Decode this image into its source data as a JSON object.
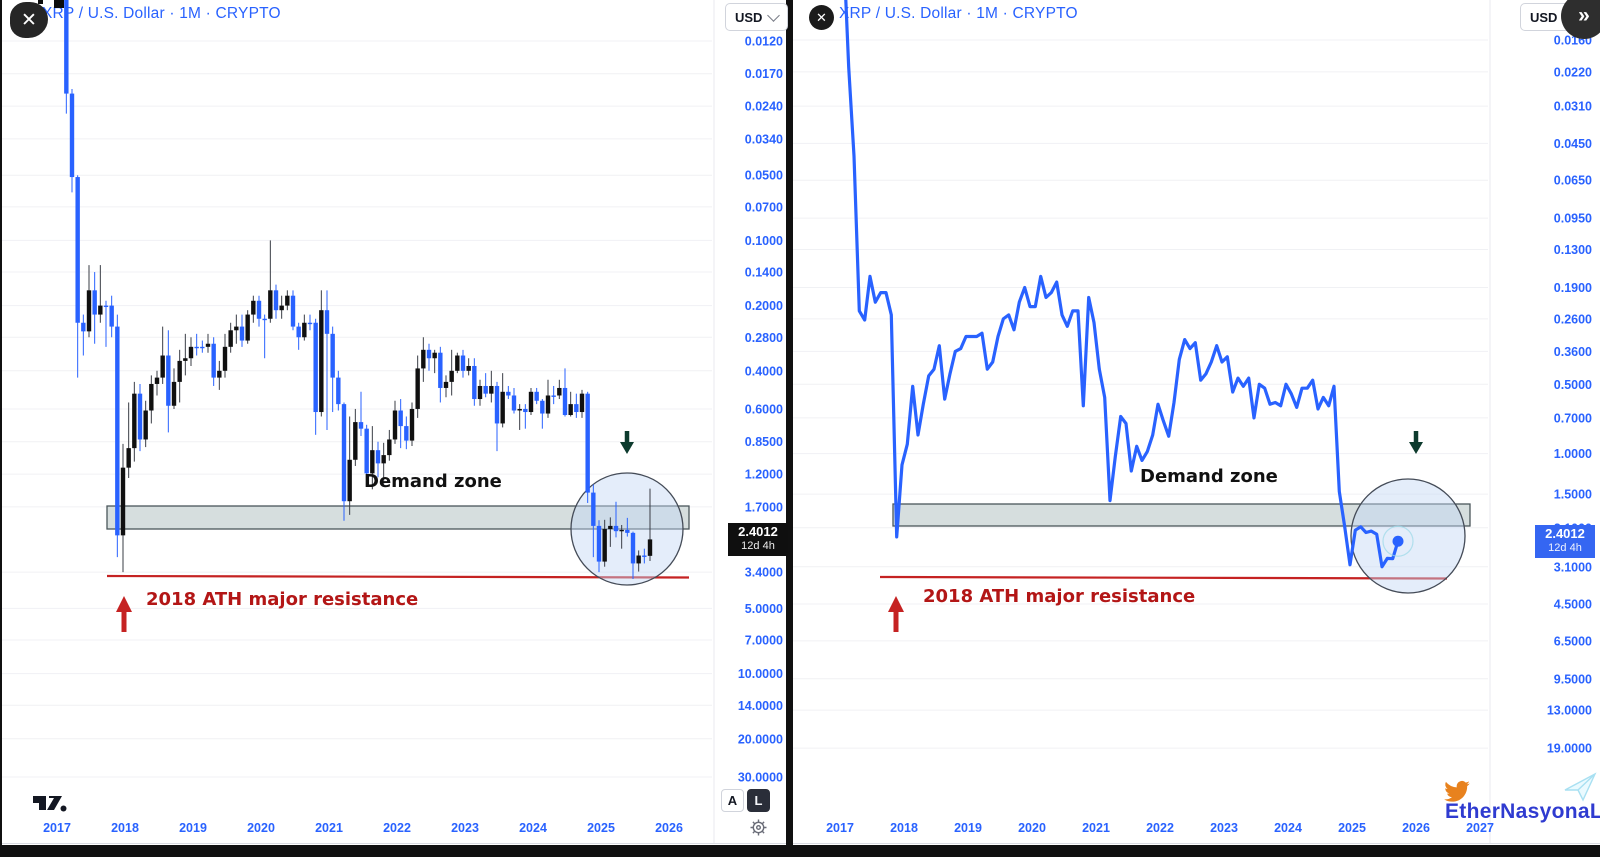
{
  "colors": {
    "accent_blue": "#2962FF",
    "bear_black": "#101010",
    "red_line": "#c52222",
    "red_text": "#b31616",
    "green_arrow": "#0d3b2e",
    "band_fill": "#cfd8d8",
    "band_border": "#4a565a",
    "circle_fill": "rgba(196,214,243,0.45)",
    "circle_border": "#444b57",
    "price_label_left_bg": "#0f0f0f",
    "price_label_right_bg": "#3566f2",
    "watermark_blue": "#2f3bd0",
    "bird_orange": "#e8821e"
  },
  "left_chart": {
    "header": {
      "symbol": "XRP / U.S. Dollar · 1M · CRYPTO",
      "currency_button": "USD"
    },
    "close_button": "✕",
    "price_label": {
      "price": "2.4012",
      "countdown": "12d 4h"
    },
    "y_axis": {
      "ticks": [
        "0.0120",
        "0.0170",
        "0.0240",
        "0.0340",
        "0.0500",
        "0.0700",
        "0.1000",
        "0.1400",
        "0.2000",
        "0.2800",
        "0.4000",
        "0.6000",
        "0.8500",
        "1.2000",
        "1.7000",
        "3.4000",
        "5.0000",
        "7.0000",
        "10.0000",
        "14.0000",
        "20.0000",
        "30.0000"
      ]
    },
    "x_axis": {
      "years": [
        "2017",
        "2018",
        "2019",
        "2020",
        "2021",
        "2022",
        "2023",
        "2024",
        "2025",
        "2026"
      ]
    },
    "annotations": {
      "demand_zone": "Demand zone",
      "ath": "2018 ATH major resistance"
    },
    "scale_toggles": {
      "auto": "A",
      "log": "L"
    }
  },
  "right_chart": {
    "header": {
      "symbol": "XRP / U.S. Dollar · 1M · CRYPTO",
      "currency_button": "USD",
      "collapse_button": "»"
    },
    "close_button": "✕",
    "price_label": {
      "price": "2.4012",
      "countdown": "12d 4h"
    },
    "y_axis": {
      "ticks": [
        "0.0160",
        "0.0220",
        "0.0310",
        "0.0450",
        "0.0650",
        "0.0950",
        "0.1300",
        "0.1900",
        "0.2600",
        "0.3600",
        "0.5000",
        "0.7000",
        "1.0000",
        "1.5000",
        "2.1000",
        "3.1000",
        "4.5000",
        "6.5000",
        "9.5000",
        "13.0000",
        "19.0000"
      ]
    },
    "x_axis": {
      "years": [
        "2017",
        "2018",
        "2019",
        "2020",
        "2021",
        "2022",
        "2023",
        "2024",
        "2025",
        "2026",
        "2027"
      ]
    },
    "annotations": {
      "demand_zone": "Demand zone",
      "ath": "2018 ATH major resistance"
    }
  },
  "watermark": {
    "handle": "EtherNasyonaL"
  },
  "chart_data": [
    {
      "type": "candlestick",
      "title": "XRP / U.S. Dollar · 1M · CRYPTO (left pane)",
      "scale": "log",
      "inverted_y_axis": true,
      "y_ticks": [
        0.012,
        0.017,
        0.024,
        0.034,
        0.05,
        0.07,
        0.1,
        0.14,
        0.2,
        0.28,
        0.4,
        0.6,
        0.85,
        1.2,
        1.7,
        3.4,
        5,
        7,
        10,
        14,
        20,
        30
      ],
      "x_years": [
        2017,
        2018,
        2019,
        2020,
        2021,
        2022,
        2023,
        2024,
        2025,
        2026
      ],
      "demand_zone_price_range": [
        1.72,
        2.18
      ],
      "ath_resistance_price": 3.4,
      "current_price": 2.4012,
      "columns": [
        "month",
        "open",
        "high",
        "low",
        "close"
      ],
      "candles": [
        [
          "2017-01",
          0.0065,
          0.0072,
          0.0058,
          0.0063
        ],
        [
          "2017-02",
          0.0063,
          0.007,
          0.0055,
          0.006
        ],
        [
          "2017-03",
          0.006,
          0.026,
          0.0058,
          0.021
        ],
        [
          "2017-04",
          0.021,
          0.06,
          0.02,
          0.051
        ],
        [
          "2017-05",
          0.051,
          0.43,
          0.05,
          0.24
        ],
        [
          "2017-06",
          0.24,
          0.34,
          0.22,
          0.263
        ],
        [
          "2017-07",
          0.263,
          0.28,
          0.13,
          0.17
        ],
        [
          "2017-08",
          0.17,
          0.3,
          0.14,
          0.22
        ],
        [
          "2017-09",
          0.22,
          0.24,
          0.13,
          0.2
        ],
        [
          "2017-10",
          0.2,
          0.31,
          0.19,
          0.2
        ],
        [
          "2017-11",
          0.2,
          0.28,
          0.18,
          0.25
        ],
        [
          "2017-12",
          0.25,
          2.9,
          0.22,
          2.3
        ],
        [
          "2018-01",
          2.3,
          3.4,
          0.87,
          1.12
        ],
        [
          "2018-02",
          1.12,
          1.25,
          0.56,
          0.91
        ],
        [
          "2018-03",
          0.91,
          1.05,
          0.45,
          0.51
        ],
        [
          "2018-04",
          0.51,
          0.94,
          0.46,
          0.83
        ],
        [
          "2018-05",
          0.83,
          0.9,
          0.55,
          0.61
        ],
        [
          "2018-06",
          0.61,
          0.7,
          0.42,
          0.46
        ],
        [
          "2018-07",
          0.46,
          0.52,
          0.4,
          0.43
        ],
        [
          "2018-08",
          0.43,
          0.46,
          0.25,
          0.34
        ],
        [
          "2018-09",
          0.34,
          0.77,
          0.26,
          0.58
        ],
        [
          "2018-10",
          0.58,
          0.6,
          0.39,
          0.45
        ],
        [
          "2018-11",
          0.45,
          0.56,
          0.32,
          0.36
        ],
        [
          "2018-12",
          0.36,
          0.42,
          0.27,
          0.35
        ],
        [
          "2019-01",
          0.35,
          0.38,
          0.28,
          0.31
        ],
        [
          "2019-02",
          0.31,
          0.34,
          0.27,
          0.31
        ],
        [
          "2019-03",
          0.31,
          0.33,
          0.29,
          0.31
        ],
        [
          "2019-04",
          0.31,
          0.33,
          0.27,
          0.3
        ],
        [
          "2019-05",
          0.3,
          0.47,
          0.28,
          0.43
        ],
        [
          "2019-06",
          0.43,
          0.49,
          0.36,
          0.4
        ],
        [
          "2019-07",
          0.4,
          0.43,
          0.27,
          0.31
        ],
        [
          "2019-08",
          0.31,
          0.33,
          0.24,
          0.26
        ],
        [
          "2019-09",
          0.26,
          0.3,
          0.22,
          0.25
        ],
        [
          "2019-10",
          0.25,
          0.31,
          0.22,
          0.29
        ],
        [
          "2019-11",
          0.29,
          0.3,
          0.21,
          0.22
        ],
        [
          "2019-12",
          0.22,
          0.24,
          0.18,
          0.19
        ],
        [
          "2020-01",
          0.19,
          0.25,
          0.18,
          0.23
        ],
        [
          "2020-02",
          0.23,
          0.35,
          0.22,
          0.23
        ],
        [
          "2020-03",
          0.23,
          0.24,
          0.1,
          0.17
        ],
        [
          "2020-04",
          0.17,
          0.23,
          0.16,
          0.21
        ],
        [
          "2020-05",
          0.21,
          0.23,
          0.18,
          0.2
        ],
        [
          "2020-06",
          0.2,
          0.21,
          0.17,
          0.18
        ],
        [
          "2020-07",
          0.18,
          0.26,
          0.17,
          0.25
        ],
        [
          "2020-08",
          0.25,
          0.32,
          0.24,
          0.28
        ],
        [
          "2020-09",
          0.28,
          0.29,
          0.22,
          0.24
        ],
        [
          "2020-10",
          0.24,
          0.26,
          0.22,
          0.24
        ],
        [
          "2020-11",
          0.24,
          0.79,
          0.23,
          0.62
        ],
        [
          "2020-12",
          0.62,
          0.65,
          0.17,
          0.21
        ],
        [
          "2021-01",
          0.21,
          0.75,
          0.17,
          0.27
        ],
        [
          "2021-02",
          0.27,
          0.62,
          0.25,
          0.43
        ],
        [
          "2021-03",
          0.43,
          0.61,
          0.4,
          0.57
        ],
        [
          "2021-04",
          0.57,
          1.97,
          0.56,
          1.6
        ],
        [
          "2021-05",
          1.6,
          1.85,
          0.65,
          1.03
        ],
        [
          "2021-06",
          1.03,
          1.1,
          0.6,
          0.69
        ],
        [
          "2021-07",
          0.69,
          0.8,
          0.5,
          0.74
        ],
        [
          "2021-08",
          0.74,
          1.34,
          0.71,
          1.19
        ],
        [
          "2021-09",
          1.19,
          1.41,
          0.72,
          0.93
        ],
        [
          "2021-10",
          0.93,
          1.24,
          0.85,
          1.07
        ],
        [
          "2021-11",
          1.07,
          1.36,
          0.86,
          0.98
        ],
        [
          "2021-12",
          0.98,
          1.04,
          0.75,
          0.83
        ],
        [
          "2022-01",
          0.83,
          0.87,
          0.55,
          0.61
        ],
        [
          "2022-02",
          0.61,
          0.91,
          0.54,
          0.72
        ],
        [
          "2022-03",
          0.72,
          0.92,
          0.65,
          0.84
        ],
        [
          "2022-04",
          0.84,
          0.89,
          0.56,
          0.6
        ],
        [
          "2022-05",
          0.6,
          0.66,
          0.34,
          0.39
        ],
        [
          "2022-06",
          0.39,
          0.45,
          0.28,
          0.32
        ],
        [
          "2022-07",
          0.32,
          0.4,
          0.3,
          0.35
        ],
        [
          "2022-08",
          0.35,
          0.41,
          0.32,
          0.33
        ],
        [
          "2022-09",
          0.33,
          0.56,
          0.31,
          0.48
        ],
        [
          "2022-10",
          0.48,
          0.53,
          0.42,
          0.45
        ],
        [
          "2022-11",
          0.45,
          0.52,
          0.32,
          0.4
        ],
        [
          "2022-12",
          0.4,
          0.41,
          0.33,
          0.34
        ],
        [
          "2023-01",
          0.34,
          0.43,
          0.32,
          0.4
        ],
        [
          "2023-02",
          0.4,
          0.42,
          0.35,
          0.38
        ],
        [
          "2023-03",
          0.38,
          0.58,
          0.35,
          0.54
        ],
        [
          "2023-04",
          0.54,
          0.58,
          0.44,
          0.47
        ],
        [
          "2023-05",
          0.47,
          0.53,
          0.41,
          0.51
        ],
        [
          "2023-06",
          0.51,
          0.56,
          0.4,
          0.47
        ],
        [
          "2023-07",
          0.47,
          0.94,
          0.45,
          0.7
        ],
        [
          "2023-08",
          0.7,
          0.73,
          0.41,
          0.5
        ],
        [
          "2023-09",
          0.5,
          0.54,
          0.47,
          0.52
        ],
        [
          "2023-10",
          0.52,
          0.63,
          0.48,
          0.61
        ],
        [
          "2023-11",
          0.61,
          0.75,
          0.57,
          0.6
        ],
        [
          "2023-12",
          0.6,
          0.74,
          0.57,
          0.62
        ],
        [
          "2024-01",
          0.62,
          0.64,
          0.48,
          0.5
        ],
        [
          "2024-02",
          0.5,
          0.57,
          0.48,
          0.55
        ],
        [
          "2024-03",
          0.55,
          0.74,
          0.54,
          0.63
        ],
        [
          "2024-04",
          0.63,
          0.66,
          0.44,
          0.52
        ],
        [
          "2024-05",
          0.52,
          0.57,
          0.47,
          0.52
        ],
        [
          "2024-06",
          0.52,
          0.54,
          0.44,
          0.48
        ],
        [
          "2024-07",
          0.48,
          0.65,
          0.39,
          0.64
        ],
        [
          "2024-08",
          0.64,
          0.65,
          0.5,
          0.57
        ],
        [
          "2024-09",
          0.57,
          0.66,
          0.51,
          0.62
        ],
        [
          "2024-10",
          0.62,
          0.66,
          0.49,
          0.51
        ],
        [
          "2024-11",
          0.51,
          1.63,
          0.5,
          1.46
        ],
        [
          "2024-12",
          1.46,
          2.9,
          1.34,
          2.08
        ],
        [
          "2025-01",
          2.08,
          3.4,
          1.96,
          3.04
        ],
        [
          "2025-02",
          3.04,
          3.21,
          1.95,
          2.15
        ],
        [
          "2025-03",
          2.15,
          2.6,
          1.9,
          2.08
        ],
        [
          "2025-04",
          2.08,
          2.35,
          1.61,
          2.2
        ],
        [
          "2025-05",
          2.2,
          2.65,
          2.06,
          2.17
        ],
        [
          "2025-06",
          2.17,
          2.33,
          1.91,
          2.24
        ],
        [
          "2025-07",
          2.24,
          3.66,
          2.21,
          3.1
        ],
        [
          "2025-08",
          3.1,
          3.38,
          2.7,
          2.85
        ],
        [
          "2025-09",
          2.85,
          3.1,
          2.65,
          2.86
        ],
        [
          "2025-10",
          2.86,
          3.02,
          1.4,
          2.4012
        ]
      ]
    },
    {
      "type": "line",
      "title": "XRP / U.S. Dollar · 1M · CRYPTO (right pane)",
      "scale": "log",
      "inverted_y_axis": true,
      "y_ticks": [
        0.016,
        0.022,
        0.031,
        0.045,
        0.065,
        0.095,
        0.13,
        0.19,
        0.26,
        0.36,
        0.5,
        0.7,
        1,
        1.5,
        2.1,
        3.1,
        4.5,
        6.5,
        9.5,
        13,
        19
      ],
      "x_years": [
        2017,
        2018,
        2019,
        2020,
        2021,
        2022,
        2023,
        2024,
        2025,
        2026,
        2027
      ],
      "demand_zone_price_range": [
        1.66,
        2.05
      ],
      "ath_resistance_price": 3.4,
      "current_price": 2.4012,
      "values_from": "monthly closes of chart_data[0].candles",
      "last_point_marker": true
    }
  ]
}
